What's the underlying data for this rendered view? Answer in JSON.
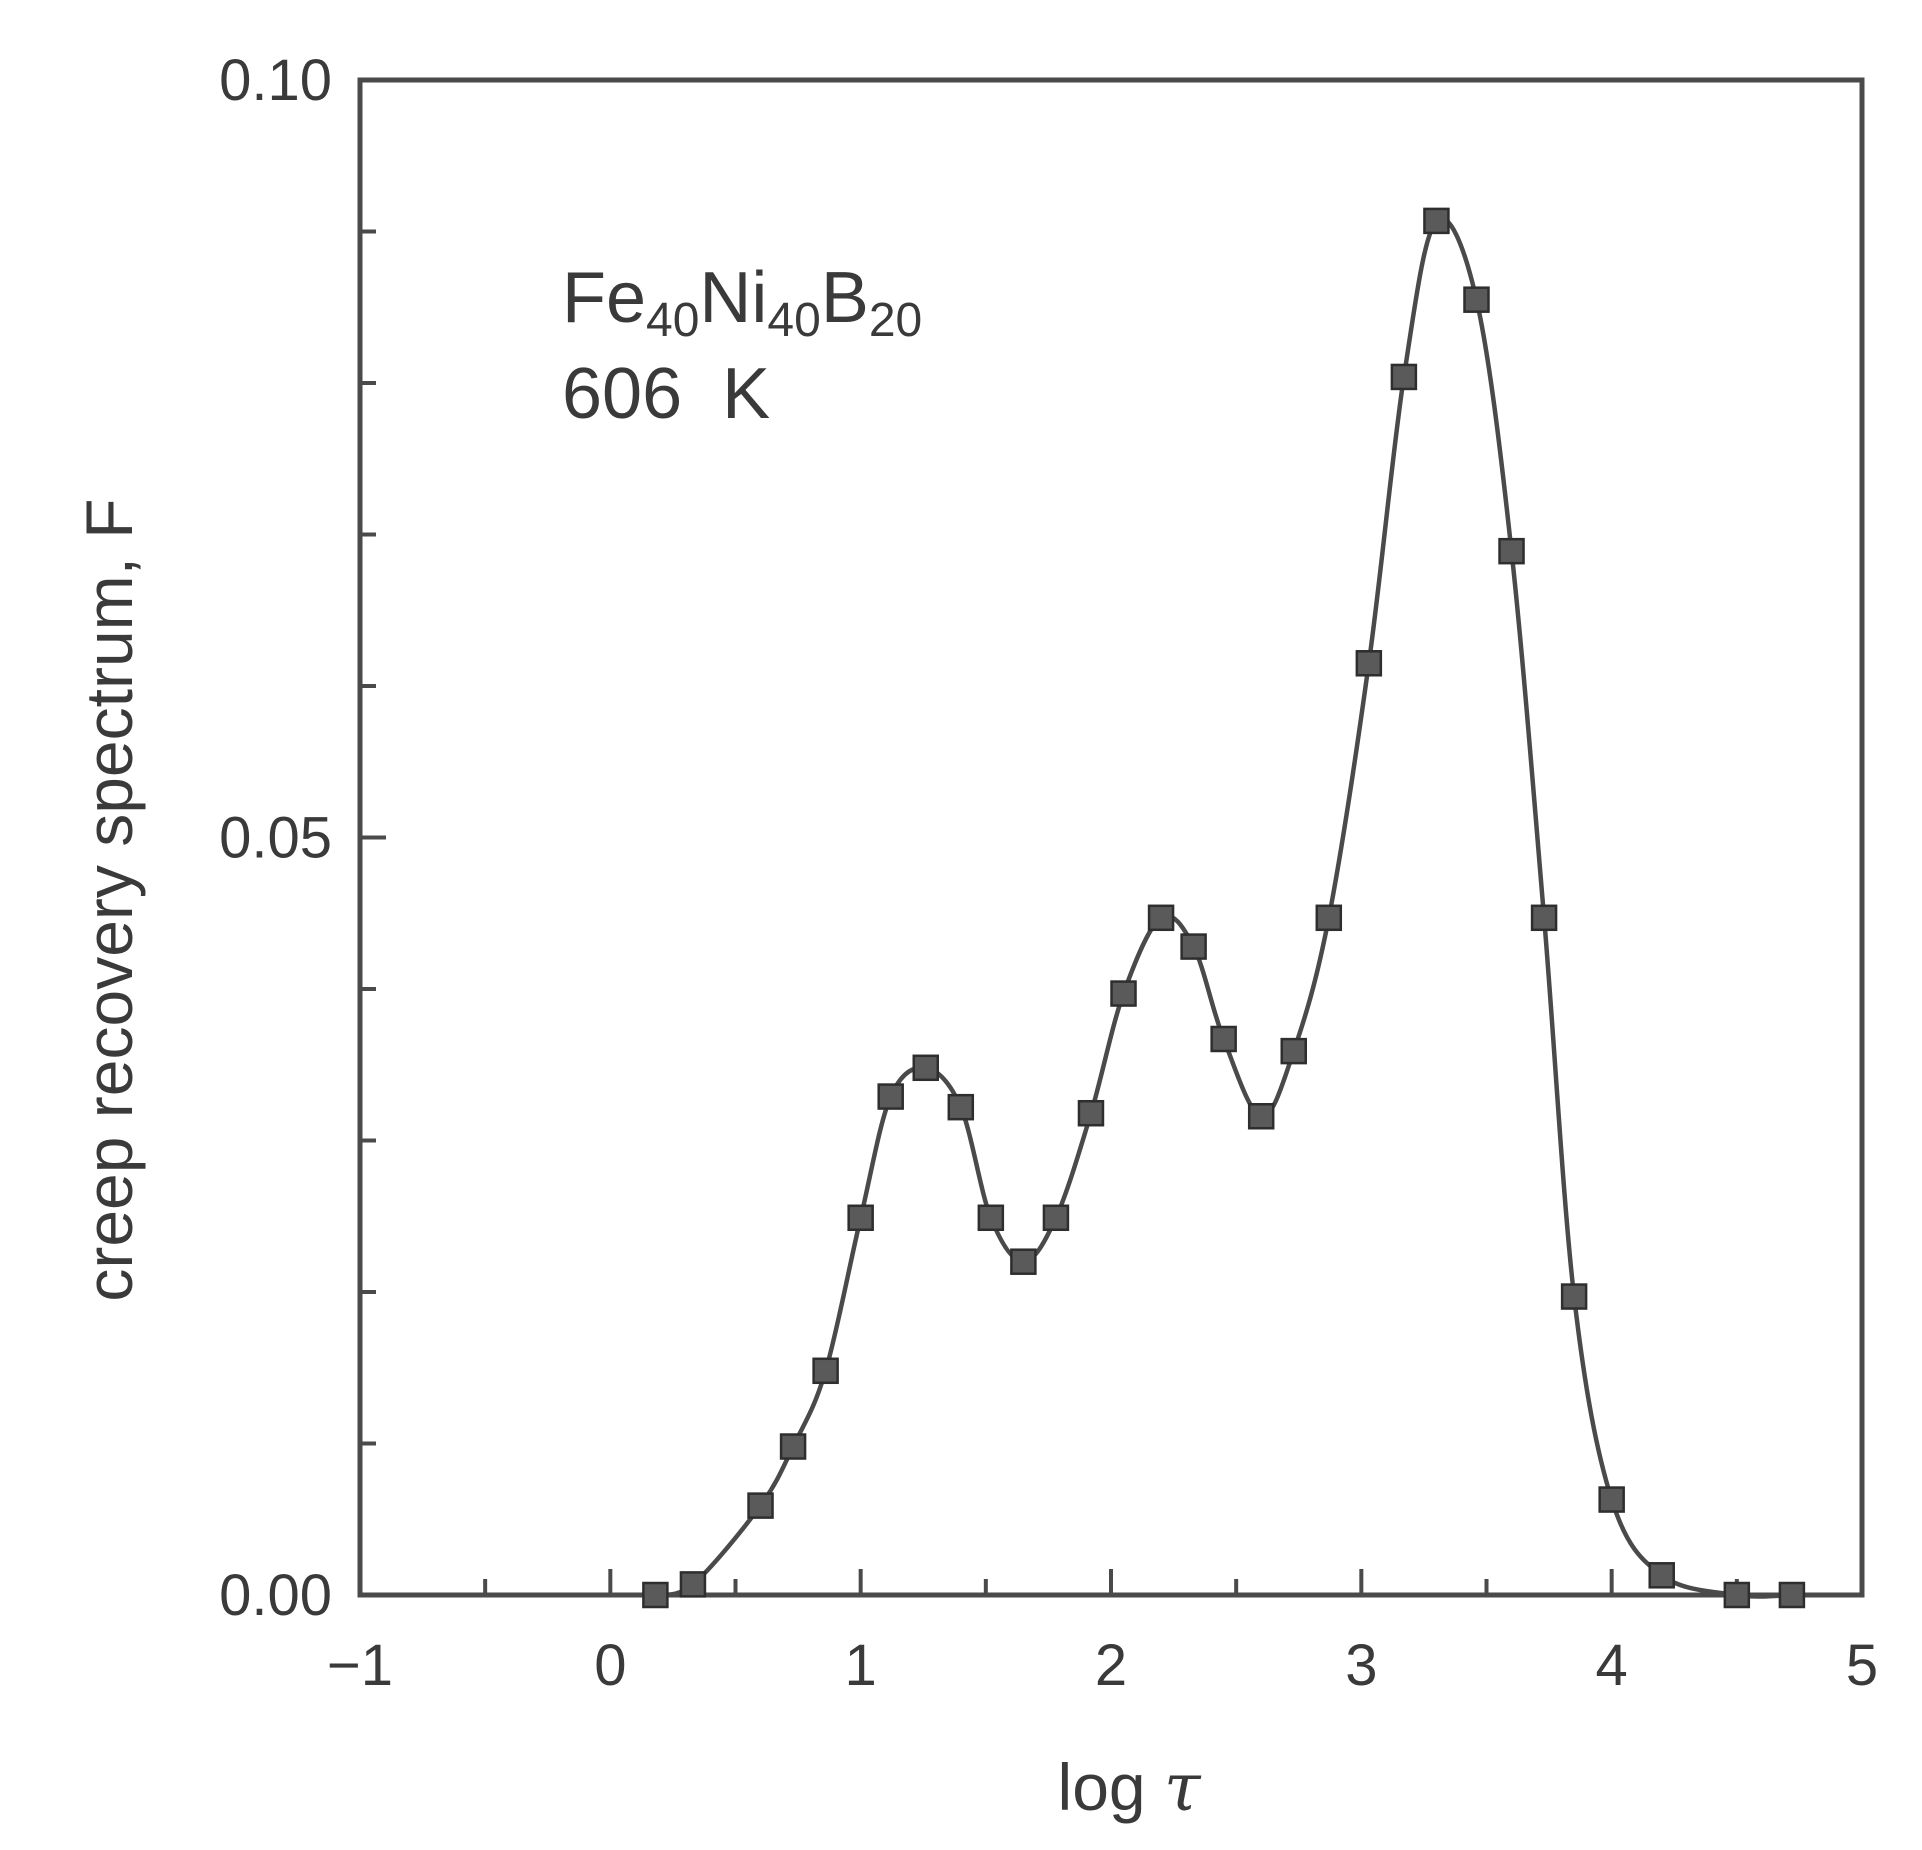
{
  "chart_data": {
    "type": "line",
    "xlabel_main": "log ",
    "xlabel_sym": "τ",
    "ylabel": "creep recovery spectrum, F",
    "xlim": [
      -1,
      5
    ],
    "ylim": [
      0,
      0.1
    ],
    "x_ticks": [
      {
        "value": -1,
        "label": "−1"
      },
      {
        "value": 0,
        "label": "0"
      },
      {
        "value": 1,
        "label": "1"
      },
      {
        "value": 2,
        "label": "2"
      },
      {
        "value": 3,
        "label": "3"
      },
      {
        "value": 4,
        "label": "4"
      },
      {
        "value": 5,
        "label": "5"
      }
    ],
    "y_ticks": [
      {
        "value": 0,
        "label": "0.00"
      },
      {
        "value": 0.05,
        "label": "0.05"
      },
      {
        "value": 0.1,
        "label": "0.10"
      }
    ],
    "x_minor_step": 0.5,
    "y_minor_step": 0.01,
    "grid": false,
    "annotation": {
      "line1": {
        "el1": "Fe",
        "n1": "40",
        "el2": "Ni",
        "n2": "40",
        "el3": "B",
        "n3": "20"
      },
      "line2": "606  K"
    },
    "series": [
      {
        "marker": "square",
        "color": "#5a5a5a",
        "x": [
          0.18,
          0.33,
          0.6,
          0.73,
          0.86,
          1.0,
          1.12,
          1.26,
          1.4,
          1.52,
          1.65,
          1.78,
          1.92,
          2.05,
          2.2,
          2.33,
          2.45,
          2.6,
          2.73,
          2.87,
          3.03,
          3.17,
          3.3,
          3.46,
          3.6,
          3.73,
          3.85,
          4.0,
          4.2,
          4.5,
          4.72
        ],
        "y": [
          0.0,
          0.0007,
          0.0059,
          0.0098,
          0.0148,
          0.0249,
          0.0329,
          0.0348,
          0.0322,
          0.0249,
          0.022,
          0.0249,
          0.0318,
          0.0397,
          0.0447,
          0.0428,
          0.0367,
          0.0316,
          0.0359,
          0.0447,
          0.0615,
          0.0804,
          0.0907,
          0.0855,
          0.0689,
          0.0447,
          0.0197,
          0.0063,
          0.0013,
          0.0,
          0.0
        ]
      }
    ]
  }
}
